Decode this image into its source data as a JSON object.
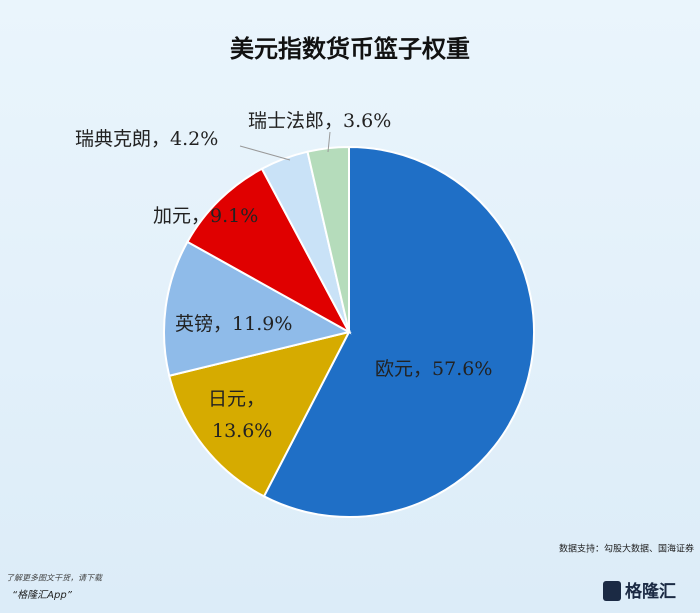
{
  "chart_data": {
    "type": "pie",
    "title": "美元指数货币篮子权重",
    "categories": [
      "欧元",
      "日元",
      "英镑",
      "加元",
      "瑞典克朗",
      "瑞士法郎"
    ],
    "values": [
      57.6,
      13.6,
      11.9,
      9.1,
      4.2,
      3.6
    ],
    "value_labels": [
      "57.6%",
      "13.6%",
      "11.9%",
      "9.1%",
      "4.2%",
      "3.6%"
    ],
    "label_separator": "，",
    "colors": [
      "#1f6fc6",
      "#d6ab00",
      "#8fbbe9",
      "#e00000",
      "#c9e2f7",
      "#b5dcbb"
    ],
    "source": "数据支持：勾股大数据、国海证券"
  },
  "footer": {
    "line1": "了解更多图文干货，请下载",
    "line2": "“格隆汇App”",
    "brand": "格隆汇"
  }
}
